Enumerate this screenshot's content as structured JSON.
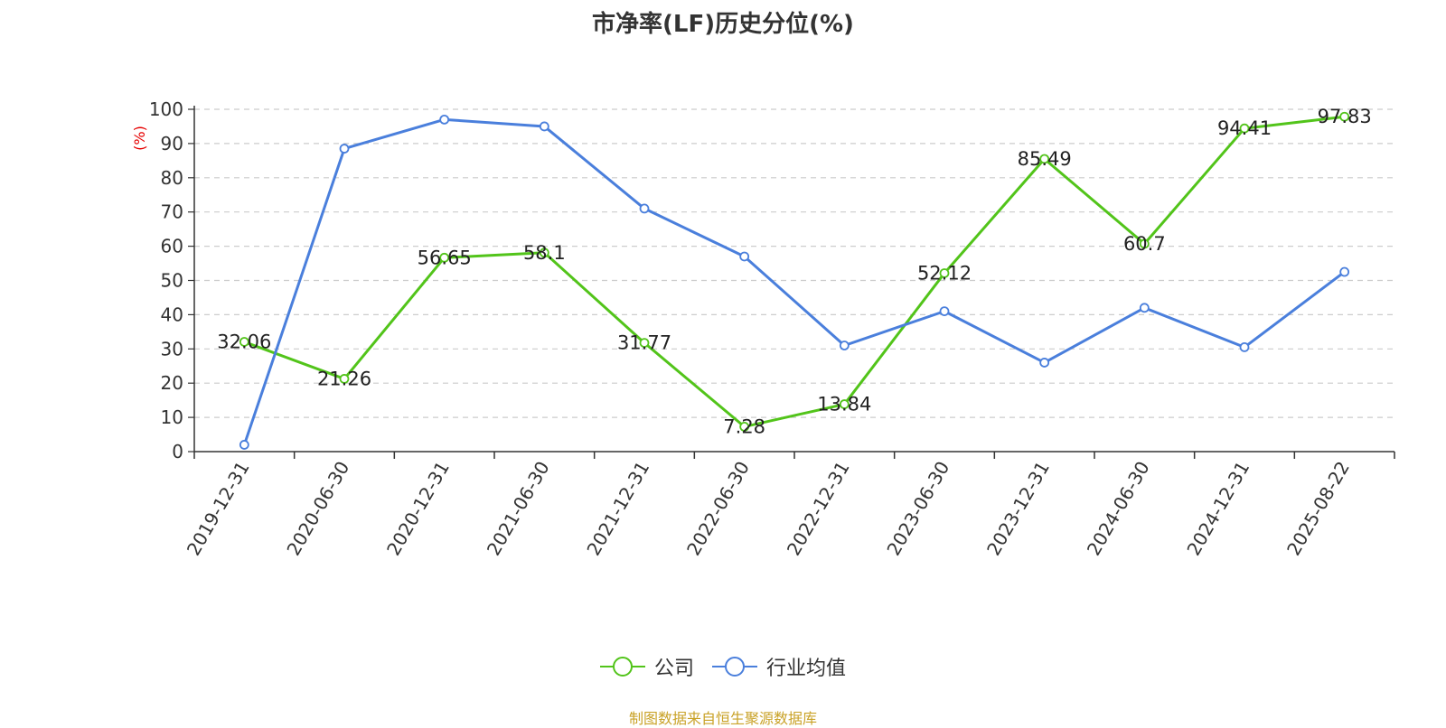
{
  "title": "市净率(LF)历史分位(%)",
  "source_note": "制图数据来自恒生聚源数据库",
  "chart_data": {
    "type": "line",
    "title": "市净率(LF)历史分位(%)",
    "ylabel": "(%)",
    "xlabel": "",
    "ylim": [
      0,
      100
    ],
    "yticks": [
      0,
      10,
      20,
      30,
      40,
      50,
      60,
      70,
      80,
      90,
      100
    ],
    "grid": true,
    "legend_position": "bottom-center",
    "categories": [
      "2019-12-31",
      "2020-06-30",
      "2020-12-31",
      "2021-06-30",
      "2021-12-31",
      "2022-06-30",
      "2022-12-31",
      "2023-06-30",
      "2023-12-31",
      "2024-06-30",
      "2024-12-31",
      "2025-08-22"
    ],
    "series": [
      {
        "name": "公司",
        "color": "#52c41a",
        "show_labels": true,
        "values": [
          32.06,
          21.26,
          56.65,
          58.1,
          31.77,
          7.28,
          13.84,
          52.12,
          85.49,
          60.7,
          94.41,
          97.83
        ],
        "labels": [
          "32.06",
          "21.26",
          "56.65",
          "58.1",
          "31.77",
          "7.28",
          "13.84",
          "52.12",
          "85.49",
          "60.7",
          "94.41",
          "97.83"
        ]
      },
      {
        "name": "行业均值",
        "color": "#4a7fdc",
        "show_labels": false,
        "values": [
          2,
          88.5,
          97,
          95,
          71,
          57,
          31,
          41,
          26,
          42,
          30.5,
          52.5
        ]
      }
    ]
  }
}
